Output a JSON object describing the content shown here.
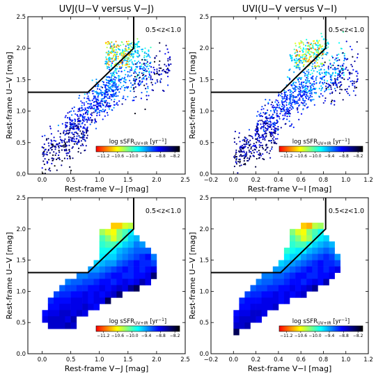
{
  "panel_titles": [
    "UVJ(U−V versus V−J)",
    "UVI(U−V versus V−I)"
  ],
  "redshift_label": "0.5<z<1.0",
  "colorbar": {
    "label_main": "log sSFR",
    "label_sub": "UV+IR",
    "label_unit": "[yr",
    "label_exp": "−1",
    "label_close": "]",
    "ticks": [
      "−11.2",
      "−10.6",
      "−10.0",
      "−9.4",
      "−8.8",
      "−8.2"
    ],
    "tick_values": [
      -11.2,
      -10.6,
      -10.0,
      -9.4,
      -8.8,
      -8.2
    ],
    "range": [
      -11.5,
      -8.0
    ],
    "colors": [
      "#ff0000",
      "#ff8000",
      "#ffff00",
      "#80ff80",
      "#00ffff",
      "#0080ff",
      "#0000ff",
      "#000080",
      "#000000"
    ]
  },
  "chart_data": [
    {
      "type": "scatter",
      "panel": "top-left",
      "title": "UVJ(U−V versus V−J)",
      "xlabel": "Rest-frame V−J [mag]",
      "ylabel": "Rest-frame U−V [mag]",
      "xlim": [
        -0.25,
        2.5
      ],
      "ylim": [
        0.0,
        2.5
      ],
      "xticks": [
        "0.0",
        "0.5",
        "1.0",
        "1.5",
        "2.0",
        "2.5"
      ],
      "yticks": [
        "0.0",
        "0.5",
        "1.0",
        "1.5",
        "2.0",
        "2.5"
      ],
      "xtick_values": [
        0,
        0.5,
        1.0,
        1.5,
        2.0,
        2.5
      ],
      "ytick_values": [
        0,
        0.5,
        1.0,
        1.5,
        2.0,
        2.5
      ],
      "selection_line": [
        [
          -0.25,
          1.3
        ],
        [
          0.8,
          1.3
        ],
        [
          1.6,
          2.0
        ],
        [
          1.6,
          2.5
        ]
      ],
      "bands": [
        {
          "xmin": 0.0,
          "xmax": 0.8,
          "center_y": 0.5,
          "slope": 0.55,
          "width": 0.15,
          "count": 260
        },
        {
          "xmin": 0.4,
          "xmax": 1.3,
          "center_y": 1.05,
          "slope": 0.75,
          "width": 0.15,
          "count": 330
        },
        {
          "xmin": 0.9,
          "xmax": 1.9,
          "center_y": 1.45,
          "slope": 0.6,
          "width": 0.16,
          "count": 300
        },
        {
          "xmin": 1.1,
          "xmax": 1.7,
          "center_y": 1.9,
          "slope": 0.3,
          "width": 0.1,
          "count": 160
        },
        {
          "xmin": 1.6,
          "xmax": 2.25,
          "center_y": 1.55,
          "slope": 0.5,
          "width": 0.18,
          "count": 120
        }
      ],
      "red_region": {
        "xmin": 1.1,
        "xmax": 1.55,
        "ymin": 1.7,
        "ymax": 2.12,
        "count": 110
      }
    },
    {
      "type": "scatter",
      "panel": "top-right",
      "title": "UVI(U−V versus V−I)",
      "xlabel": "Rest-frame V−I [mag]",
      "ylabel": "Rest-frame U−V [mag]",
      "xlim": [
        -0.2,
        1.2
      ],
      "ylim": [
        0.0,
        2.5
      ],
      "xticks": [
        "−0.2",
        "0.0",
        "0.2",
        "0.4",
        "0.6",
        "0.8",
        "1.0",
        "1.2"
      ],
      "yticks": [
        "0.0",
        "0.5",
        "1.0",
        "1.5",
        "2.0",
        "2.5"
      ],
      "xtick_values": [
        -0.2,
        0.0,
        0.2,
        0.4,
        0.6,
        0.8,
        1.0,
        1.2
      ],
      "ytick_values": [
        0,
        0.5,
        1.0,
        1.5,
        2.0,
        2.5
      ],
      "selection_line": [
        [
          -0.2,
          1.3
        ],
        [
          0.42,
          1.3
        ],
        [
          0.82,
          2.0
        ],
        [
          0.82,
          2.5
        ]
      ],
      "bands": [
        {
          "xmin": 0.0,
          "xmax": 0.4,
          "center_y": 0.5,
          "slope": 1.1,
          "width": 0.15,
          "count": 260
        },
        {
          "xmin": 0.2,
          "xmax": 0.7,
          "center_y": 1.05,
          "slope": 1.4,
          "width": 0.15,
          "count": 330
        },
        {
          "xmin": 0.45,
          "xmax": 1.0,
          "center_y": 1.45,
          "slope": 1.1,
          "width": 0.16,
          "count": 300
        },
        {
          "xmin": 0.5,
          "xmax": 0.85,
          "center_y": 1.9,
          "slope": 0.5,
          "width": 0.1,
          "count": 160
        },
        {
          "xmin": 0.8,
          "xmax": 1.12,
          "center_y": 1.55,
          "slope": 0.9,
          "width": 0.18,
          "count": 120
        }
      ],
      "red_region": {
        "xmin": 0.55,
        "xmax": 0.8,
        "ymin": 1.7,
        "ymax": 2.12,
        "count": 110
      }
    },
    {
      "type": "heatmap",
      "panel": "bottom-left",
      "xlabel": "Rest-frame V−J [mag]",
      "ylabel": "Rest-frame U−V [mag]",
      "xlim": [
        -0.25,
        2.5
      ],
      "ylim": [
        0.0,
        2.5
      ],
      "xticks": [
        "0.0",
        "0.5",
        "1.0",
        "1.5",
        "2.0",
        "2.5"
      ],
      "yticks": [
        "0.0",
        "0.5",
        "1.0",
        "1.5",
        "2.0",
        "2.5"
      ],
      "xtick_values": [
        0,
        0.5,
        1.0,
        1.5,
        2.0,
        2.5
      ],
      "ytick_values": [
        0,
        0.5,
        1.0,
        1.5,
        2.0,
        2.5
      ],
      "selection_line": [
        [
          -0.25,
          1.3
        ],
        [
          0.8,
          1.3
        ],
        [
          1.6,
          2.0
        ],
        [
          1.6,
          2.5
        ]
      ],
      "cell_size": [
        0.1,
        0.1
      ],
      "cell_origin": [
        0.0,
        0.4
      ],
      "rows": [
        {
          "y": 2.0,
          "x0": 1.2,
          "values": [
            -10.8,
            -10.8,
            -10.5,
            -10.4
          ]
        },
        {
          "y": 1.9,
          "x0": 1.0,
          "values": [
            -10.3,
            -10.5,
            -10.6,
            -10.2,
            -10.0,
            -9.7
          ]
        },
        {
          "y": 1.8,
          "x0": 1.0,
          "values": [
            -10.0,
            -10.2,
            -10.5,
            -10.2,
            -9.9,
            -9.6,
            -9.5
          ]
        },
        {
          "y": 1.7,
          "x0": 1.0,
          "values": [
            -9.9,
            -10.0,
            -10.0,
            -9.8,
            -9.6,
            -9.5,
            -9.3,
            -9.4
          ]
        },
        {
          "y": 1.6,
          "x0": 1.0,
          "values": [
            -9.8,
            -9.8,
            -9.7,
            -9.5,
            -9.4,
            -9.3,
            -9.2,
            -9.2,
            -9.2
          ]
        },
        {
          "y": 1.5,
          "x0": 1.0,
          "values": [
            -9.7,
            -9.6,
            -9.6,
            -9.4,
            -9.3,
            -9.2,
            -9.1,
            -9.0,
            -8.9,
            -9.3
          ]
        },
        {
          "y": 1.4,
          "x0": 0.9,
          "values": [
            -9.6,
            -9.5,
            -9.4,
            -9.4,
            -9.2,
            -9.1,
            -9.0,
            -8.9,
            -9.0,
            -9.0,
            -9.1
          ]
        },
        {
          "y": 1.3,
          "x0": 0.8,
          "values": [
            -9.4,
            -9.4,
            -9.3,
            -9.2,
            -9.1,
            -9.0,
            -8.9,
            -9.0,
            -8.9,
            -9.0,
            -8.9,
            -8.8
          ]
        },
        {
          "y": 1.2,
          "x0": 0.6,
          "values": [
            -9.3,
            -9.3,
            -9.2,
            -9.2,
            -9.1,
            -9.0,
            -8.9,
            -8.9,
            -9.0,
            -9.0,
            -8.9,
            -8.9,
            -8.8,
            -8.4
          ]
        },
        {
          "y": 1.1,
          "x0": 0.4,
          "values": [
            -9.3,
            -9.2,
            -9.2,
            -9.1,
            -9.1,
            -9.0,
            -8.9,
            -8.9,
            -9.0,
            -8.9,
            -8.8,
            -8.9,
            -8.8,
            -8.6,
            -8.8
          ]
        },
        {
          "y": 1.0,
          "x0": 0.3,
          "values": [
            -9.2,
            -9.1,
            -9.1,
            -9.0,
            -9.0,
            -8.9,
            -8.9,
            -8.8,
            -8.9,
            -8.8,
            -8.7,
            -8.8,
            -8.5,
            -8.3
          ]
        },
        {
          "y": 0.9,
          "x0": 0.2,
          "values": [
            -9.1,
            -9.0,
            -9.0,
            -8.9,
            -8.9,
            -8.8,
            -8.9,
            -8.8,
            -8.9,
            -8.8,
            -8.7,
            -8.4
          ]
        },
        {
          "y": 0.8,
          "x0": 0.1,
          "values": [
            -9.0,
            -8.9,
            -8.9,
            -8.9,
            -8.8,
            -8.8,
            -8.8,
            -8.9,
            -8.8,
            -8.8,
            -8.3
          ]
        },
        {
          "y": 0.7,
          "x0": 0.1,
          "values": [
            -8.9,
            -8.9,
            -8.8,
            -8.8,
            -8.8,
            -8.8,
            -8.7,
            -8.8,
            -8.9
          ]
        },
        {
          "y": 0.6,
          "x0": 0.0,
          "values": [
            -8.9,
            -8.8,
            -8.8,
            -8.7,
            -8.7,
            -8.8,
            -8.7,
            -8.8
          ]
        },
        {
          "y": 0.5,
          "x0": 0.0,
          "values": [
            -8.8,
            -8.7,
            -8.7,
            -8.7,
            -8.8,
            -8.6
          ]
        },
        {
          "y": 0.4,
          "x0": 0.1,
          "values": [
            -8.7,
            -8.7,
            -8.7,
            -8.6,
            -8.7
          ]
        }
      ]
    },
    {
      "type": "heatmap",
      "panel": "bottom-right",
      "xlabel": "Rest-frame V−I [mag]",
      "ylabel": "Rest-frame U−V [mag]",
      "xlim": [
        -0.2,
        1.2
      ],
      "ylim": [
        0.0,
        2.5
      ],
      "xticks": [
        "−0.2",
        "0.0",
        "0.2",
        "0.4",
        "0.6",
        "0.8",
        "1.0",
        "1.2"
      ],
      "yticks": [
        "0.0",
        "0.5",
        "1.0",
        "1.5",
        "2.0",
        "2.5"
      ],
      "xtick_values": [
        -0.2,
        0.0,
        0.2,
        0.4,
        0.6,
        0.8,
        1.0,
        1.2
      ],
      "ytick_values": [
        0,
        0.5,
        1.0,
        1.5,
        2.0,
        2.5
      ],
      "selection_line": [
        [
          -0.2,
          1.3
        ],
        [
          0.42,
          1.3
        ],
        [
          0.82,
          2.0
        ],
        [
          0.82,
          2.5
        ]
      ],
      "cell_size": [
        0.05,
        0.1
      ],
      "rows": [
        {
          "y": 2.0,
          "x0": 0.6,
          "values": [
            -10.8,
            -10.9,
            -10.4,
            -10.3
          ]
        },
        {
          "y": 1.9,
          "x0": 0.5,
          "values": [
            -10.2,
            -10.5,
            -10.6,
            -10.2,
            -10.0,
            -9.8
          ]
        },
        {
          "y": 1.8,
          "x0": 0.5,
          "values": [
            -10.0,
            -10.2,
            -10.5,
            -10.3,
            -9.9,
            -9.7,
            -9.6
          ]
        },
        {
          "y": 1.7,
          "x0": 0.5,
          "values": [
            -9.9,
            -10.0,
            -10.0,
            -9.8,
            -9.6,
            -9.5,
            -9.4,
            -9.5
          ]
        },
        {
          "y": 1.6,
          "x0": 0.45,
          "values": [
            -9.9,
            -9.8,
            -9.7,
            -9.7,
            -9.5,
            -9.4,
            -9.3,
            -9.2,
            -9.3
          ]
        },
        {
          "y": 1.5,
          "x0": 0.45,
          "values": [
            -9.7,
            -9.6,
            -9.6,
            -9.4,
            -9.3,
            -9.2,
            -9.1,
            -9.0,
            -9.1,
            -9.4
          ]
        },
        {
          "y": 1.4,
          "x0": 0.4,
          "values": [
            -9.6,
            -9.5,
            -9.4,
            -9.3,
            -9.2,
            -9.1,
            -9.0,
            -8.9,
            -9.0,
            -9.0,
            -9.1
          ]
        },
        {
          "y": 1.3,
          "x0": 0.35,
          "values": [
            -9.4,
            -9.4,
            -9.3,
            -9.2,
            -9.1,
            -9.0,
            -8.9,
            -9.0,
            -8.9,
            -9.0,
            -8.9,
            -8.8
          ]
        },
        {
          "y": 1.2,
          "x0": 0.25,
          "values": [
            -9.3,
            -9.3,
            -9.2,
            -9.2,
            -9.1,
            -9.0,
            -8.9,
            -8.9,
            -9.0,
            -9.0,
            -8.9,
            -8.9,
            -8.8
          ]
        },
        {
          "y": 1.1,
          "x0": 0.2,
          "values": [
            -9.3,
            -9.2,
            -9.2,
            -9.1,
            -9.1,
            -9.0,
            -8.9,
            -8.9,
            -9.0,
            -8.9,
            -8.8,
            -8.9,
            -8.6
          ]
        },
        {
          "y": 1.0,
          "x0": 0.15,
          "values": [
            -9.2,
            -9.1,
            -9.1,
            -9.0,
            -9.0,
            -8.9,
            -8.9,
            -8.8,
            -8.9,
            -8.8,
            -8.7,
            -8.5
          ]
        },
        {
          "y": 0.9,
          "x0": 0.1,
          "values": [
            -9.1,
            -9.0,
            -9.0,
            -8.9,
            -8.9,
            -8.8,
            -8.9,
            -8.8,
            -8.9,
            -8.8,
            -8.7
          ]
        },
        {
          "y": 0.8,
          "x0": 0.05,
          "values": [
            -9.0,
            -8.9,
            -8.9,
            -8.9,
            -8.8,
            -8.8,
            -8.8,
            -8.9,
            -8.8
          ]
        },
        {
          "y": 0.7,
          "x0": 0.05,
          "values": [
            -8.9,
            -8.9,
            -8.8,
            -8.8,
            -8.8,
            -8.8,
            -8.7
          ]
        },
        {
          "y": 0.6,
          "x0": 0.0,
          "values": [
            -8.9,
            -8.8,
            -8.8,
            -8.7,
            -8.7,
            -8.8
          ]
        },
        {
          "y": 0.5,
          "x0": 0.0,
          "values": [
            -8.8,
            -8.7,
            -8.7,
            -8.7,
            -8.8
          ]
        },
        {
          "y": 0.4,
          "x0": 0.0,
          "values": [
            -8.7,
            -8.7,
            -8.6
          ]
        },
        {
          "y": 0.3,
          "x0": 0.0,
          "values": [
            -8.3
          ]
        }
      ]
    }
  ]
}
